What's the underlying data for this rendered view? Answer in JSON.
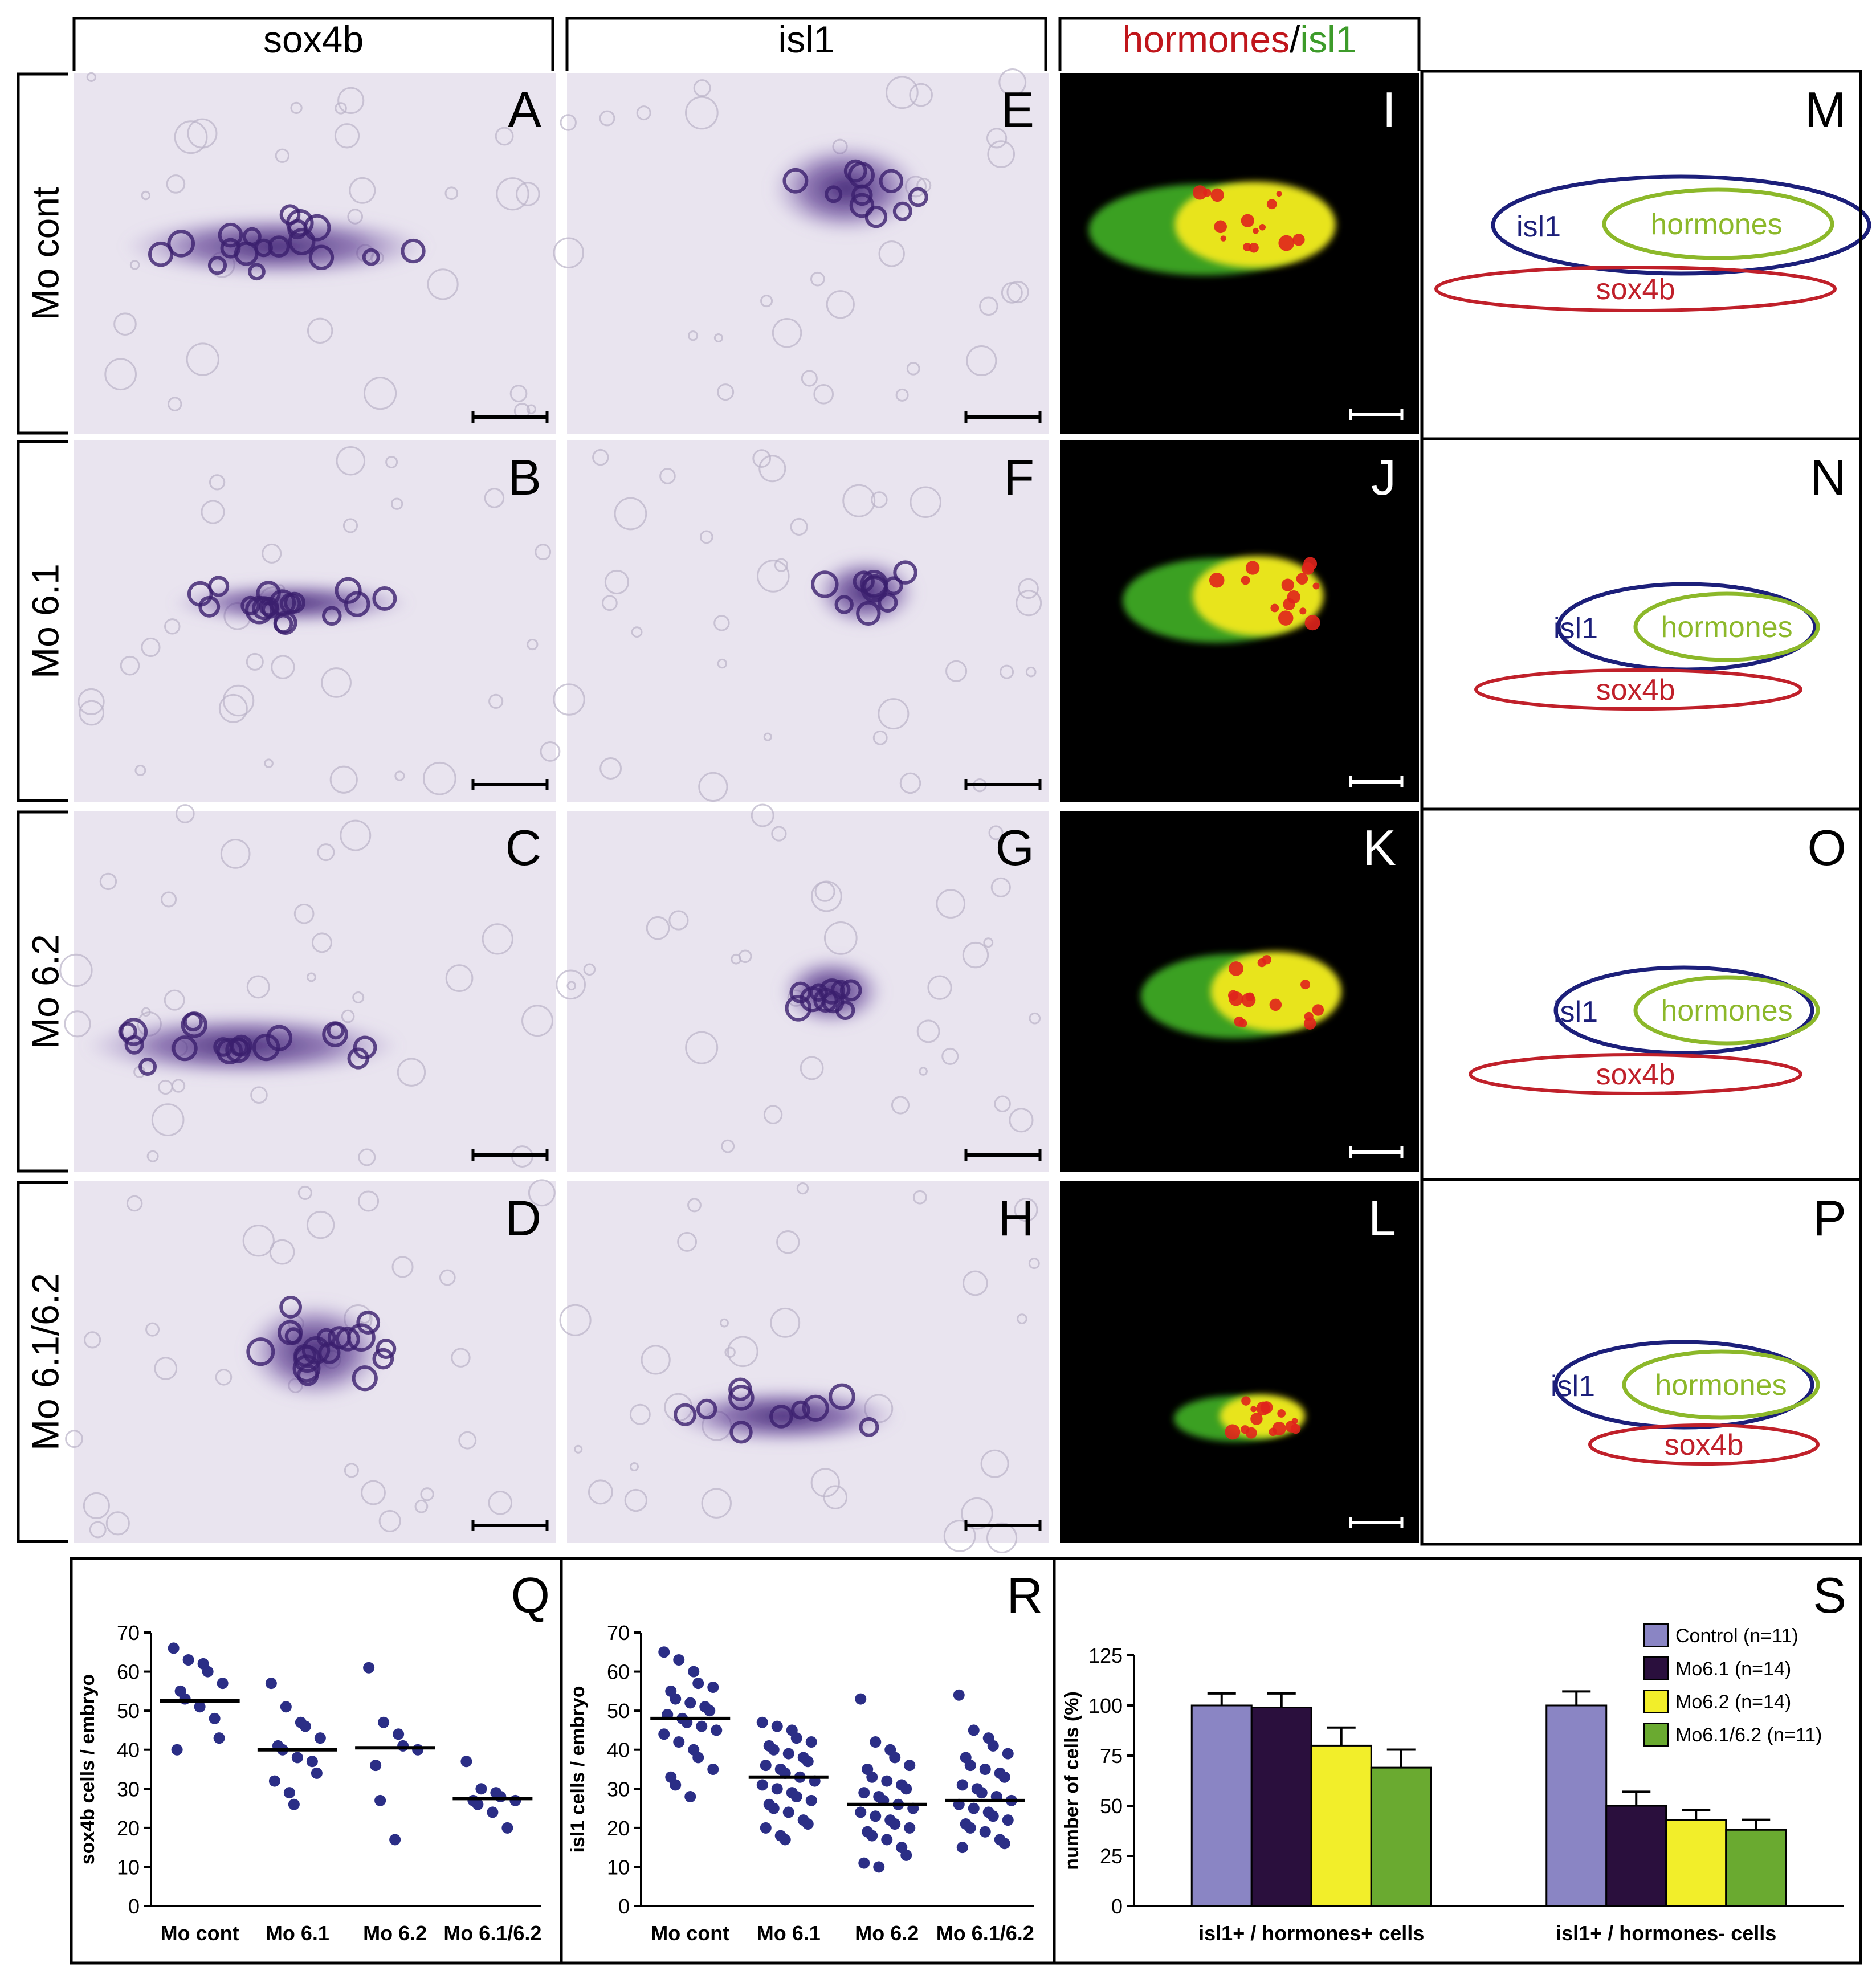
{
  "column_headers": {
    "sox4b": "sox4b",
    "isl1": "isl1",
    "hormones_isl1": {
      "hormones": "hormones",
      "slash": "/",
      "isl1": "isl1"
    }
  },
  "row_labels": [
    "Mo cont",
    "Mo 6.1",
    "Mo 6.2",
    "Mo 6.1/6.2"
  ],
  "panel_letters": {
    "sox4b": [
      "A",
      "B",
      "C",
      "D"
    ],
    "isl1": [
      "E",
      "F",
      "G",
      "H"
    ],
    "fluor": [
      "I",
      "J",
      "K",
      "L"
    ],
    "schematic": [
      "M",
      "N",
      "O",
      "P"
    ],
    "charts": [
      "Q",
      "R",
      "S"
    ]
  },
  "schematic_labels": {
    "isl1": "isl1",
    "hormones": "hormones",
    "sox4b": "sox4b"
  },
  "colors": {
    "isl1_oval": "#1c1f7a",
    "hormones_oval": "#8cb82a",
    "sox4b_oval": "#c0202a",
    "hormones_text": "#c0151b",
    "isl1_text_green": "#3d9b2a",
    "dots": "#2b2e86",
    "bar_control": "#8a85c4",
    "bar_mo61": "#2a0f3d",
    "bar_mo62": "#f2ee2a",
    "bar_mo6162": "#6aaa30"
  },
  "chart_data": [
    {
      "type": "scatter",
      "panel": "Q",
      "ylabel": "sox4b cells / embryo",
      "categories": [
        "Mo cont",
        "Mo 6.1",
        "Mo 6.2",
        "Mo 6.1/6.2"
      ],
      "ylim": [
        0,
        70
      ],
      "yticks": [
        0,
        10,
        20,
        30,
        40,
        50,
        60,
        70
      ],
      "points": [
        [
          66,
          63,
          62,
          60,
          57,
          55,
          53,
          51,
          48,
          43,
          40
        ],
        [
          57,
          51,
          47,
          46,
          43,
          41,
          40,
          38,
          37,
          34,
          32,
          29,
          26
        ],
        [
          61,
          47,
          44,
          41,
          40,
          36,
          27,
          17
        ],
        [
          37,
          30,
          29,
          28,
          27,
          27,
          26,
          24,
          20
        ]
      ],
      "means": [
        52.5,
        40,
        40.5,
        27.5
      ]
    },
    {
      "type": "scatter",
      "panel": "R",
      "ylabel": "isl1 cells / embryo",
      "categories": [
        "Mo cont",
        "Mo 6.1",
        "Mo 6.2",
        "Mo 6.1/6.2"
      ],
      "ylim": [
        0,
        70
      ],
      "yticks": [
        0,
        10,
        20,
        30,
        40,
        50,
        60,
        70
      ],
      "points": [
        [
          65,
          63,
          60,
          57,
          56,
          55,
          53,
          52,
          51,
          50,
          49,
          48,
          47,
          46,
          45,
          44,
          42,
          40,
          38,
          35,
          33,
          31,
          28
        ],
        [
          47,
          46,
          45,
          43,
          42,
          41,
          40,
          39,
          38,
          37,
          36,
          35,
          34,
          33,
          32,
          31,
          30,
          29,
          28,
          27,
          26,
          25,
          24,
          22,
          21,
          20,
          18,
          17
        ],
        [
          53,
          42,
          40,
          38,
          36,
          35,
          33,
          32,
          31,
          30,
          29,
          28,
          27,
          26,
          25,
          24,
          23,
          22,
          21,
          20,
          19,
          18,
          17,
          15,
          13,
          11,
          10
        ],
        [
          54,
          45,
          43,
          41,
          39,
          38,
          36,
          35,
          34,
          33,
          31,
          30,
          29,
          28,
          27,
          26,
          25,
          24,
          23,
          22,
          21,
          20,
          19,
          17,
          16,
          15
        ]
      ],
      "means": [
        48,
        33,
        26,
        27
      ]
    },
    {
      "type": "bar",
      "panel": "S",
      "ylabel": "number of cells (%)",
      "categories": [
        "isl1+ / hormones+ cells",
        "isl1+ / hormones- cells"
      ],
      "ylim": [
        0,
        125
      ],
      "yticks": [
        0,
        25,
        50,
        75,
        100,
        125
      ],
      "series": [
        {
          "name": "Control (n=11)",
          "values": [
            100,
            100
          ],
          "errors": [
            6,
            7
          ]
        },
        {
          "name": "Mo6.1 (n=14)",
          "values": [
            99,
            50
          ],
          "errors": [
            7,
            7
          ]
        },
        {
          "name": "Mo6.2 (n=14)",
          "values": [
            80,
            43
          ],
          "errors": [
            9,
            5
          ]
        },
        {
          "name": "Mo6.1/6.2 (n=11)",
          "values": [
            69,
            38
          ],
          "errors": [
            9,
            5
          ]
        }
      ],
      "legend_position": "top-right"
    }
  ]
}
